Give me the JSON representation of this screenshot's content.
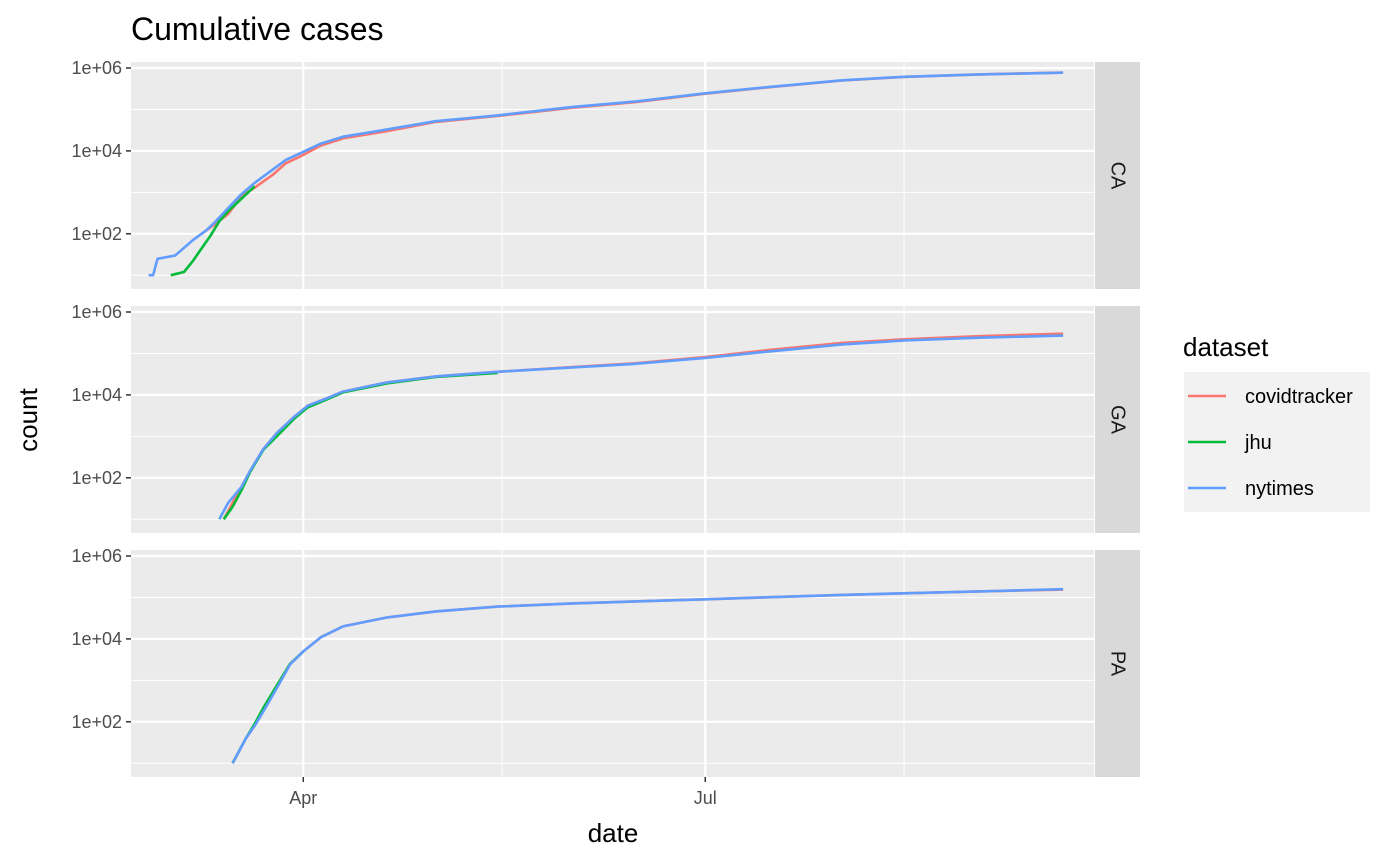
{
  "chart_data": {
    "type": "line",
    "title": "Cumulative cases",
    "xlabel": "date",
    "ylabel": "count",
    "y_scale": "log10",
    "ylim": [
      6.5,
      1000000
    ],
    "y_ticks": [
      100,
      10000,
      1000000
    ],
    "y_tick_labels": [
      "1e+02",
      "1e+04",
      "1e+06"
    ],
    "xlim": [
      "2020-02-22",
      "2020-09-27"
    ],
    "x_ticks": [
      "2020-04-01",
      "2020-07-01"
    ],
    "x_tick_labels": [
      "Apr",
      "Jul"
    ],
    "grid": true,
    "legend": {
      "title": "dataset",
      "position": "right",
      "entries": [
        "covidtracker",
        "jhu",
        "nytimes"
      ]
    },
    "series_colors": {
      "covidtracker": "#F8766D",
      "jhu": "#00BA38",
      "nytimes": "#619CFF"
    },
    "facets": [
      {
        "label": "CA",
        "series": [
          {
            "name": "covidtracker",
            "points": [
              [
                "2020-03-09",
                100
              ],
              [
                "2020-03-12",
                170
              ],
              [
                "2020-03-15",
                300
              ],
              [
                "2020-03-18",
                800
              ],
              [
                "2020-03-21",
                1300
              ],
              [
                "2020-03-25",
                2600
              ],
              [
                "2020-03-28",
                5000
              ],
              [
                "2020-04-01",
                8000
              ],
              [
                "2020-04-05",
                13500
              ],
              [
                "2020-04-10",
                20000
              ],
              [
                "2020-04-20",
                30000
              ],
              [
                "2020-05-01",
                50000
              ],
              [
                "2020-05-15",
                70000
              ],
              [
                "2020-06-01",
                110000
              ],
              [
                "2020-06-15",
                150000
              ],
              [
                "2020-07-01",
                240000
              ],
              [
                "2020-07-15",
                340000
              ],
              [
                "2020-08-01",
                500000
              ],
              [
                "2020-08-15",
                610000
              ],
              [
                "2020-09-01",
                700000
              ],
              [
                "2020-09-20",
                780000
              ]
            ]
          },
          {
            "name": "jhu",
            "points": [
              [
                "2020-03-02",
                10
              ],
              [
                "2020-03-05",
                12
              ],
              [
                "2020-03-07",
                22
              ],
              [
                "2020-03-09",
                45
              ],
              [
                "2020-03-11",
                90
              ],
              [
                "2020-03-13",
                200
              ],
              [
                "2020-03-15",
                350
              ],
              [
                "2020-03-18",
                700
              ],
              [
                "2020-03-21",
                1400
              ]
            ]
          },
          {
            "name": "nytimes",
            "points": [
              [
                "2020-02-26",
                10
              ],
              [
                "2020-02-27",
                10
              ],
              [
                "2020-02-28",
                25
              ],
              [
                "2020-03-03",
                30
              ],
              [
                "2020-03-07",
                70
              ],
              [
                "2020-03-10",
                120
              ],
              [
                "2020-03-12",
                190
              ],
              [
                "2020-03-15",
                420
              ],
              [
                "2020-03-18",
                900
              ],
              [
                "2020-03-21",
                1700
              ],
              [
                "2020-03-25",
                3500
              ],
              [
                "2020-03-28",
                6000
              ],
              [
                "2020-04-01",
                9500
              ],
              [
                "2020-04-05",
                15000
              ],
              [
                "2020-04-10",
                22000
              ],
              [
                "2020-04-20",
                33000
              ],
              [
                "2020-05-01",
                52000
              ],
              [
                "2020-05-15",
                72000
              ],
              [
                "2020-06-01",
                115000
              ],
              [
                "2020-06-15",
                155000
              ],
              [
                "2020-07-01",
                245000
              ],
              [
                "2020-07-15",
                345000
              ],
              [
                "2020-08-01",
                505000
              ],
              [
                "2020-08-15",
                612000
              ],
              [
                "2020-09-01",
                700000
              ],
              [
                "2020-09-20",
                770000
              ]
            ]
          }
        ]
      },
      {
        "label": "GA",
        "series": [
          {
            "name": "covidtracker",
            "points": [
              [
                "2020-03-14",
                10
              ],
              [
                "2020-03-16",
                25
              ],
              [
                "2020-03-18",
                60
              ],
              [
                "2020-03-20",
                150
              ],
              [
                "2020-03-23",
                500
              ],
              [
                "2020-03-26",
                1200
              ],
              [
                "2020-03-30",
                3000
              ],
              [
                "2020-04-02",
                5500
              ],
              [
                "2020-04-06",
                8000
              ],
              [
                "2020-04-10",
                12000
              ],
              [
                "2020-04-20",
                20000
              ],
              [
                "2020-05-01",
                28000
              ],
              [
                "2020-05-15",
                36000
              ],
              [
                "2020-06-01",
                47000
              ],
              [
                "2020-06-15",
                58000
              ],
              [
                "2020-07-01",
                82000
              ],
              [
                "2020-07-15",
                120000
              ],
              [
                "2020-08-01",
                180000
              ],
              [
                "2020-08-15",
                220000
              ],
              [
                "2020-09-01",
                260000
              ],
              [
                "2020-09-20",
                300000
              ]
            ]
          },
          {
            "name": "jhu",
            "points": [
              [
                "2020-03-14",
                10
              ],
              [
                "2020-03-16",
                20
              ],
              [
                "2020-03-18",
                50
              ],
              [
                "2020-03-20",
                140
              ],
              [
                "2020-03-23",
                480
              ],
              [
                "2020-03-26",
                1000
              ],
              [
                "2020-03-30",
                2700
              ],
              [
                "2020-04-02",
                5000
              ],
              [
                "2020-04-06",
                7500
              ],
              [
                "2020-04-10",
                11500
              ],
              [
                "2020-04-20",
                19000
              ],
              [
                "2020-05-01",
                27000
              ],
              [
                "2020-05-15",
                34000
              ]
            ]
          },
          {
            "name": "nytimes",
            "points": [
              [
                "2020-03-13",
                10
              ],
              [
                "2020-03-15",
                25
              ],
              [
                "2020-03-18",
                60
              ],
              [
                "2020-03-20",
                150
              ],
              [
                "2020-03-23",
                500
              ],
              [
                "2020-03-26",
                1200
              ],
              [
                "2020-03-30",
                3000
              ],
              [
                "2020-04-02",
                5500
              ],
              [
                "2020-04-06",
                8000
              ],
              [
                "2020-04-10",
                12000
              ],
              [
                "2020-04-20",
                20000
              ],
              [
                "2020-05-01",
                28000
              ],
              [
                "2020-05-15",
                36000
              ],
              [
                "2020-06-01",
                46000
              ],
              [
                "2020-06-15",
                56000
              ],
              [
                "2020-07-01",
                78000
              ],
              [
                "2020-07-15",
                110000
              ],
              [
                "2020-08-01",
                165000
              ],
              [
                "2020-08-15",
                205000
              ],
              [
                "2020-09-01",
                240000
              ],
              [
                "2020-09-20",
                270000
              ]
            ]
          }
        ]
      },
      {
        "label": "PA",
        "series": [
          {
            "name": "covidtracker",
            "points": [
              [
                "2020-03-16",
                10
              ],
              [
                "2020-03-18",
                25
              ],
              [
                "2020-03-19",
                40
              ],
              [
                "2020-03-21",
                80
              ],
              [
                "2020-03-23",
                200
              ],
              [
                "2020-03-26",
                700
              ],
              [
                "2020-03-29",
                2500
              ],
              [
                "2020-04-01",
                5000
              ],
              [
                "2020-04-05",
                11000
              ],
              [
                "2020-04-10",
                20000
              ],
              [
                "2020-04-20",
                33000
              ],
              [
                "2020-05-01",
                46000
              ],
              [
                "2020-05-15",
                60000
              ],
              [
                "2020-06-01",
                72000
              ],
              [
                "2020-07-01",
                90000
              ],
              [
                "2020-08-01",
                115000
              ],
              [
                "2020-09-01",
                140000
              ],
              [
                "2020-09-20",
                155000
              ]
            ]
          },
          {
            "name": "jhu",
            "points": [
              [
                "2020-03-16",
                10
              ],
              [
                "2020-03-18",
                25
              ],
              [
                "2020-03-19",
                40
              ],
              [
                "2020-03-21",
                90
              ],
              [
                "2020-03-23",
                220
              ],
              [
                "2020-03-26",
                750
              ],
              [
                "2020-03-29",
                2500
              ],
              [
                "2020-04-01",
                5000
              ]
            ]
          },
          {
            "name": "nytimes",
            "points": [
              [
                "2020-03-16",
                10
              ],
              [
                "2020-03-18",
                25
              ],
              [
                "2020-03-19",
                40
              ],
              [
                "2020-03-21",
                80
              ],
              [
                "2020-03-23",
                180
              ],
              [
                "2020-03-26",
                650
              ],
              [
                "2020-03-29",
                2400
              ],
              [
                "2020-04-01",
                5000
              ],
              [
                "2020-04-05",
                11000
              ],
              [
                "2020-04-10",
                20000
              ],
              [
                "2020-04-20",
                33000
              ],
              [
                "2020-05-01",
                46000
              ],
              [
                "2020-05-15",
                60000
              ],
              [
                "2020-06-01",
                72000
              ],
              [
                "2020-07-01",
                90000
              ],
              [
                "2020-08-01",
                115000
              ],
              [
                "2020-09-01",
                140000
              ],
              [
                "2020-09-20",
                158000
              ]
            ]
          }
        ]
      }
    ]
  }
}
